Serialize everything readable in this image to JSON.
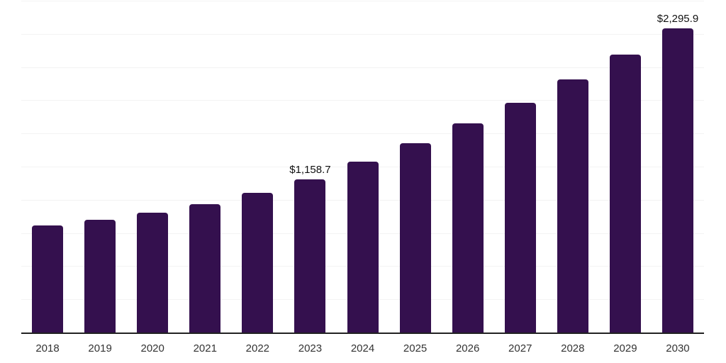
{
  "chart_data": {
    "type": "bar",
    "title": "",
    "xlabel": "",
    "ylabel": "",
    "categories": [
      "2018",
      "2019",
      "2020",
      "2021",
      "2022",
      "2023",
      "2024",
      "2025",
      "2026",
      "2027",
      "2028",
      "2029",
      "2030"
    ],
    "values": [
      810,
      855,
      908,
      970,
      1056,
      1158.7,
      1293,
      1430,
      1580,
      1736,
      1913,
      2097,
      2295.9
    ],
    "data_labels": {
      "2023": "$1,158.7",
      "2030": "$2,295.9"
    },
    "ylim": [
      0,
      2500
    ],
    "gridline_step": 250,
    "grid": "horizontal-only",
    "legend": "none",
    "colors": {
      "bar": "#34104E",
      "axis_line": "#222222",
      "gridline": "#f3f3f3",
      "tick_label": "#333333",
      "data_label": "#111111",
      "background": "#ffffff"
    }
  }
}
